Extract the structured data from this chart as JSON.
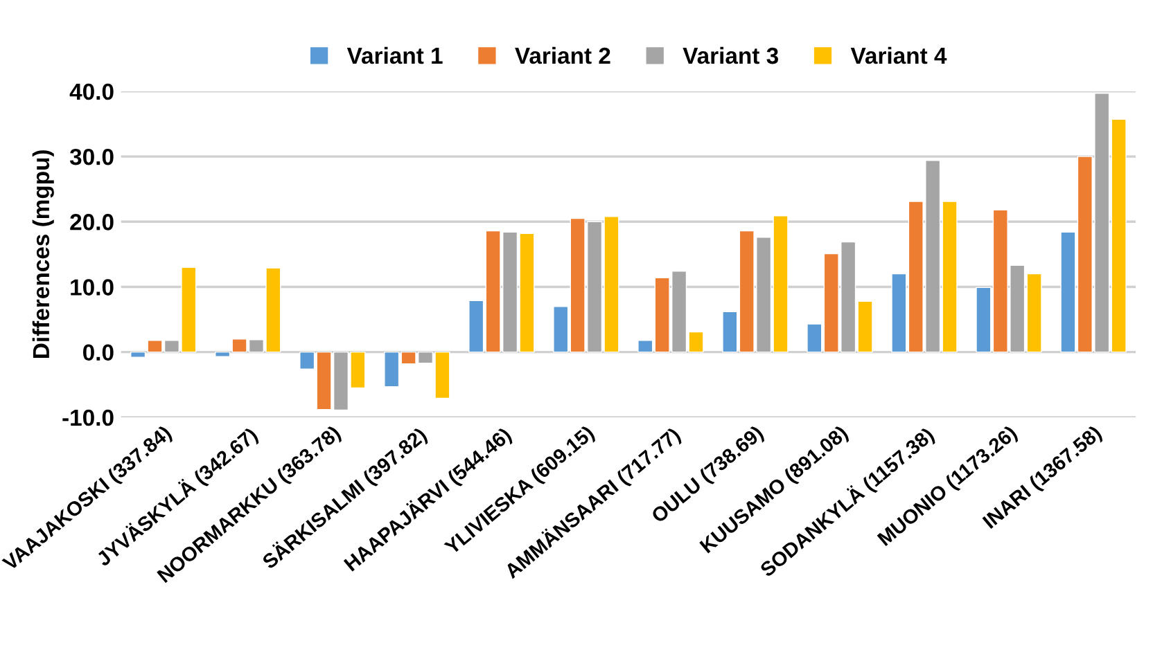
{
  "chart_data": {
    "type": "bar",
    "ylabel": "Differences (mgpu)",
    "categories": [
      "VAAJAKOSKI (337.84)",
      "JYVÄSKYLÄ (342.67)",
      "NOORMARKKU (363.78)",
      "SÄRKISALMI (397.82)",
      "HAAPAJÄRVI (544.46)",
      "YLIVIESKA (609.15)",
      "AMMÄNSAARI (717.77)",
      "OULU (738.69)",
      "KUUSAMO (891.08)",
      "SODANKYLÄ (1157.38)",
      "MUONIO (1173.26)",
      "INARI (1367.58)"
    ],
    "series": [
      {
        "name": "Variant 1",
        "color": "#5b9bd5",
        "values": [
          -0.8,
          -0.7,
          -2.6,
          -5.3,
          7.9,
          7.0,
          1.8,
          6.2,
          4.3,
          12.0,
          9.9,
          18.4
        ]
      },
      {
        "name": "Variant 2",
        "color": "#ed7d31",
        "values": [
          1.8,
          2.0,
          -8.8,
          -1.8,
          18.6,
          20.5,
          11.4,
          18.6,
          15.1,
          23.1,
          21.8,
          30.0
        ]
      },
      {
        "name": "Variant 3",
        "color": "#a5a5a5",
        "values": [
          1.8,
          1.9,
          -8.9,
          -1.7,
          18.4,
          20.0,
          12.4,
          17.6,
          16.9,
          29.4,
          13.3,
          39.7
        ]
      },
      {
        "name": "Variant 4",
        "color": "#ffc000",
        "values": [
          13.0,
          12.9,
          -5.5,
          -7.1,
          18.2,
          20.8,
          3.1,
          20.9,
          7.8,
          23.1,
          12.0,
          35.7
        ]
      }
    ],
    "ylim": [
      -10,
      40
    ],
    "yticks": [
      {
        "value": -10,
        "label": "-10.0"
      },
      {
        "value": 0,
        "label": "0.0"
      },
      {
        "value": 10,
        "label": "10.0"
      },
      {
        "value": 20,
        "label": "20.0"
      },
      {
        "value": 30,
        "label": "30.0"
      },
      {
        "value": 40,
        "label": "40.0"
      }
    ],
    "grid": "y",
    "legend": "top"
  }
}
